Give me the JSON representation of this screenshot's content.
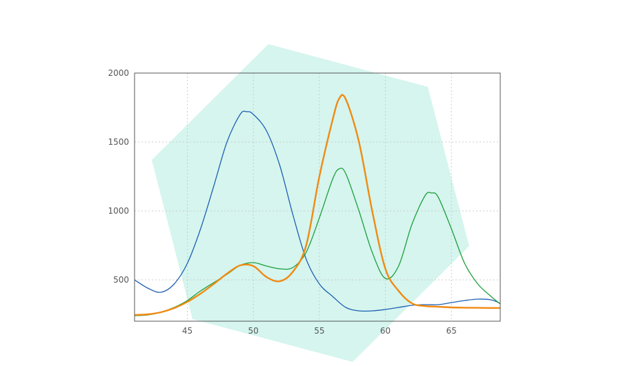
{
  "chart_data": {
    "type": "line",
    "title": "",
    "xlabel": "",
    "ylabel": "",
    "xlim": [
      41,
      68.7
    ],
    "ylim": [
      200,
      2000
    ],
    "grid": true,
    "x_ticks": [
      45,
      50,
      55,
      60,
      65
    ],
    "y_ticks": [
      500,
      1000,
      1500,
      2000
    ],
    "background_shape": {
      "type": "polygon",
      "color": "#d5f5ee"
    },
    "series": [
      {
        "color": "#1f5fb4",
        "points": [
          [
            41,
            500
          ],
          [
            42,
            440
          ],
          [
            43,
            410
          ],
          [
            44,
            470
          ],
          [
            45,
            620
          ],
          [
            46,
            870
          ],
          [
            47,
            1180
          ],
          [
            48,
            1500
          ],
          [
            49,
            1700
          ],
          [
            49.5,
            1720
          ],
          [
            50,
            1700
          ],
          [
            51,
            1580
          ],
          [
            52,
            1330
          ],
          [
            53,
            970
          ],
          [
            54,
            650
          ],
          [
            55,
            470
          ],
          [
            56,
            380
          ],
          [
            57,
            300
          ],
          [
            58,
            275
          ],
          [
            59,
            275
          ],
          [
            60,
            285
          ],
          [
            61,
            300
          ],
          [
            62,
            315
          ],
          [
            63,
            320
          ],
          [
            64,
            320
          ],
          [
            65,
            335
          ],
          [
            66,
            350
          ],
          [
            67,
            360
          ],
          [
            68,
            355
          ],
          [
            68.7,
            330
          ]
        ]
      },
      {
        "color": "#1e9e3a",
        "points": [
          [
            41,
            240
          ],
          [
            42,
            245
          ],
          [
            43,
            265
          ],
          [
            44,
            300
          ],
          [
            45,
            350
          ],
          [
            46,
            420
          ],
          [
            47,
            480
          ],
          [
            48,
            540
          ],
          [
            49,
            605
          ],
          [
            50,
            625
          ],
          [
            51,
            600
          ],
          [
            52,
            580
          ],
          [
            53,
            590
          ],
          [
            54,
            700
          ],
          [
            55,
            950
          ],
          [
            56,
            1230
          ],
          [
            56.5,
            1305
          ],
          [
            57,
            1270
          ],
          [
            58,
            1000
          ],
          [
            59,
            700
          ],
          [
            60,
            510
          ],
          [
            61,
            600
          ],
          [
            62,
            900
          ],
          [
            63,
            1110
          ],
          [
            63.5,
            1130
          ],
          [
            64,
            1100
          ],
          [
            65,
            870
          ],
          [
            66,
            620
          ],
          [
            67,
            470
          ],
          [
            68,
            380
          ],
          [
            68.7,
            325
          ]
        ]
      },
      {
        "color": "#f08a12",
        "points": [
          [
            41,
            245
          ],
          [
            42,
            250
          ],
          [
            43,
            265
          ],
          [
            44,
            295
          ],
          [
            45,
            340
          ],
          [
            46,
            400
          ],
          [
            47,
            470
          ],
          [
            48,
            545
          ],
          [
            49,
            605
          ],
          [
            50,
            600
          ],
          [
            51,
            520
          ],
          [
            52,
            490
          ],
          [
            53,
            560
          ],
          [
            54,
            750
          ],
          [
            55,
            1250
          ],
          [
            56,
            1660
          ],
          [
            56.5,
            1815
          ],
          [
            57,
            1810
          ],
          [
            58,
            1500
          ],
          [
            59,
            1000
          ],
          [
            60,
            580
          ],
          [
            61,
            420
          ],
          [
            62,
            330
          ],
          [
            63,
            310
          ],
          [
            64,
            305
          ],
          [
            65,
            300
          ],
          [
            66,
            298
          ],
          [
            67,
            297
          ],
          [
            68,
            296
          ],
          [
            68.7,
            296
          ]
        ]
      }
    ]
  }
}
